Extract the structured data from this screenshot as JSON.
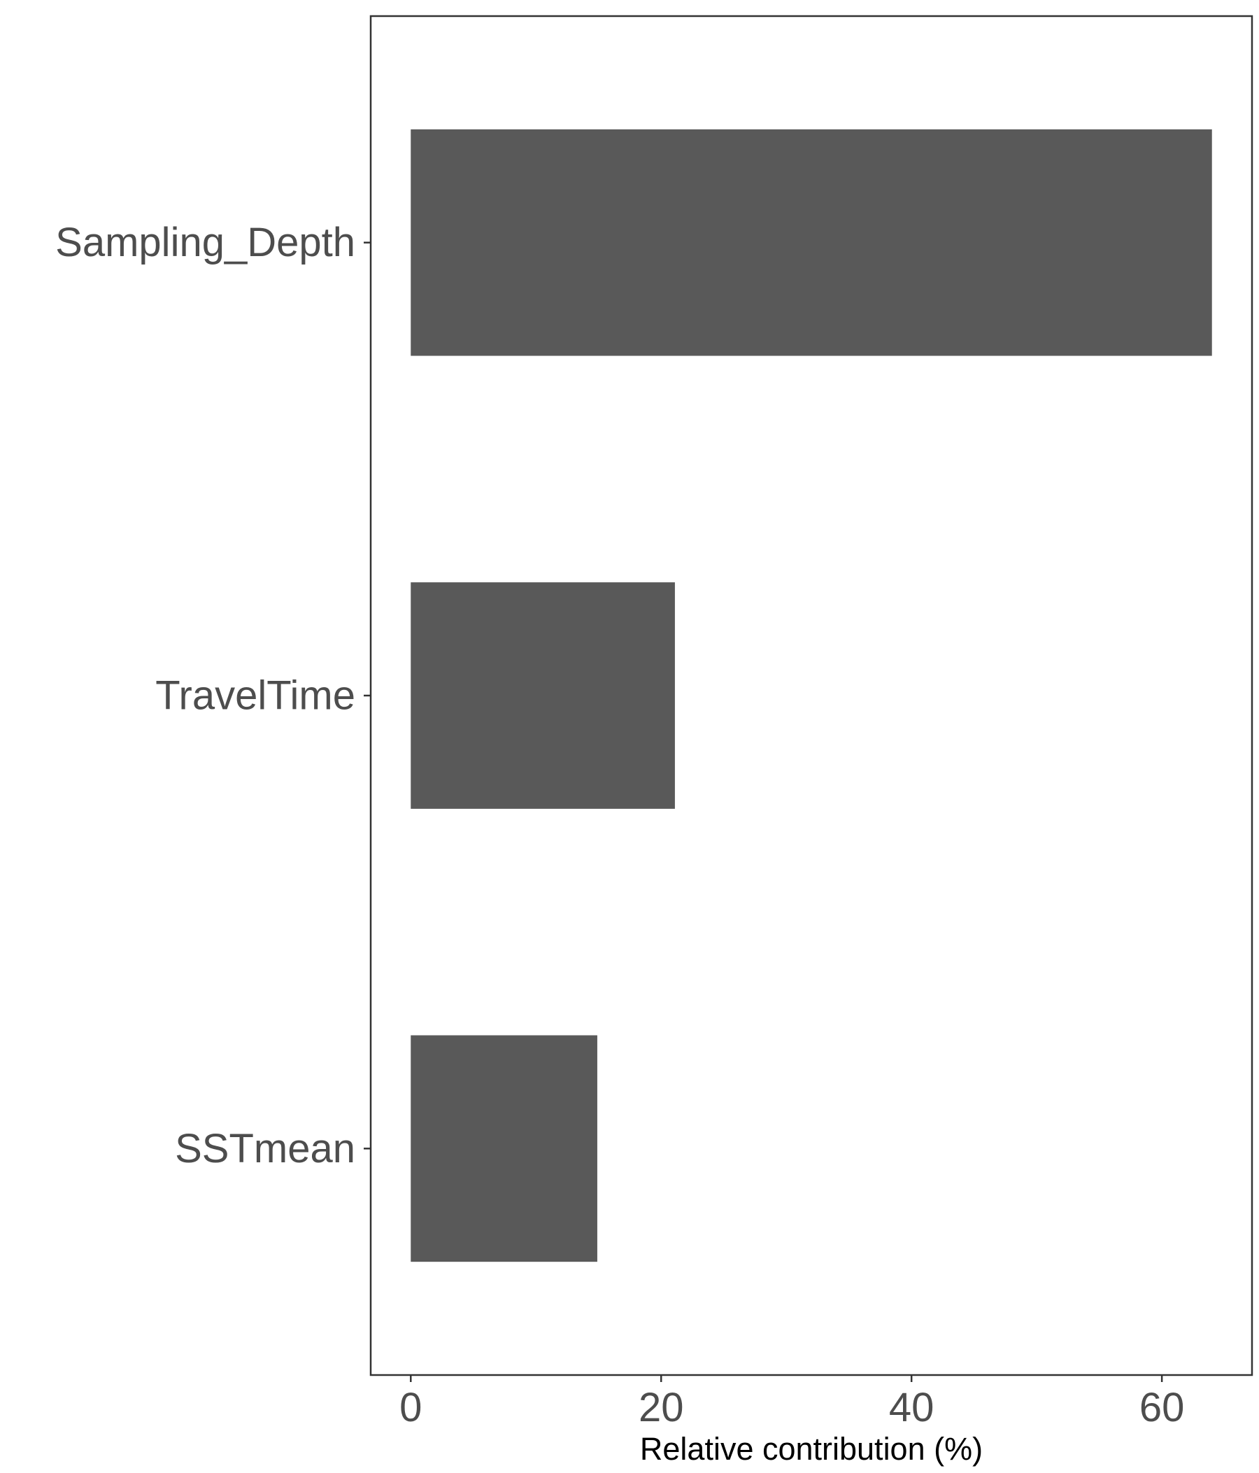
{
  "chart_data": {
    "type": "bar",
    "orientation": "horizontal",
    "categories": [
      "Sampling_Depth",
      "TravelTime",
      "SSTmean"
    ],
    "values": [
      64.0,
      21.1,
      14.9
    ],
    "title": "",
    "xlabel": "Relative contribution (%)",
    "ylabel": "",
    "xlim": [
      -3.2,
      67.2
    ],
    "xticks": [
      0,
      20,
      40,
      60
    ],
    "xtick_labels": [
      "0",
      "20",
      "40",
      "60"
    ],
    "grid": false,
    "legend": "none",
    "colors": {
      "bar": "#595959",
      "axis": "#333333",
      "tick_text": "#4d4d4d",
      "title_text": "#000000",
      "background": "#ffffff"
    }
  }
}
